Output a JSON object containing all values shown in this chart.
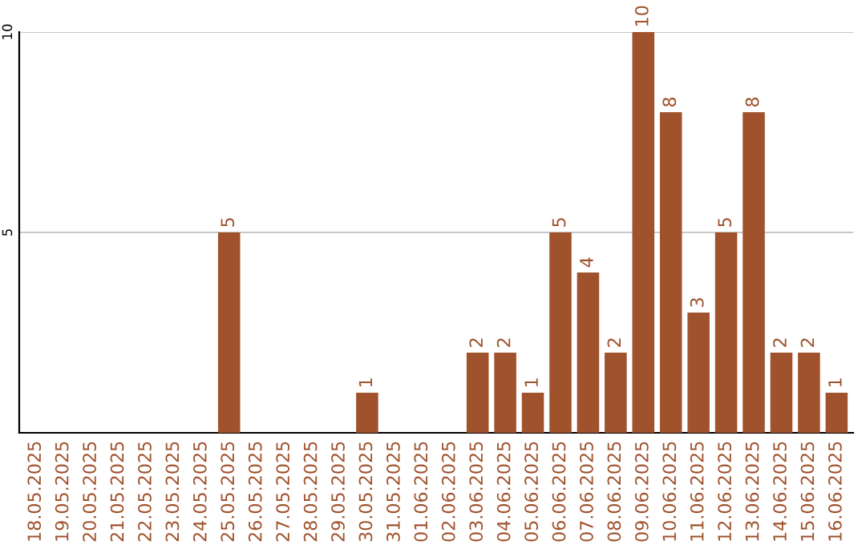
{
  "chart_data": {
    "type": "bar",
    "categories": [
      "18.05.2025",
      "19.05.2025",
      "20.05.2025",
      "21.05.2025",
      "22.05.2025",
      "23.05.2025",
      "24.05.2025",
      "25.05.2025",
      "26.05.2025",
      "27.05.2025",
      "28.05.2025",
      "29.05.2025",
      "30.05.2025",
      "31.05.2025",
      "01.06.2025",
      "02.06.2025",
      "03.06.2025",
      "04.06.2025",
      "05.06.2025",
      "06.06.2025",
      "07.06.2025",
      "08.06.2025",
      "09.06.2025",
      "10.06.2025",
      "11.06.2025",
      "12.06.2025",
      "13.06.2025",
      "14.06.2025",
      "15.06.2025",
      "16.06.2025"
    ],
    "values": [
      0,
      0,
      0,
      0,
      0,
      0,
      0,
      5,
      0,
      0,
      0,
      0,
      1,
      0,
      0,
      0,
      2,
      2,
      1,
      5,
      4,
      2,
      10,
      8,
      3,
      5,
      8,
      2,
      2,
      1
    ],
    "value_labels": [
      null,
      null,
      null,
      null,
      null,
      null,
      null,
      "5",
      null,
      null,
      null,
      null,
      "1",
      null,
      null,
      null,
      "2",
      "2",
      "1",
      "5",
      "4",
      "2",
      "10",
      "8",
      "3",
      "5",
      "8",
      "2",
      "2",
      "1"
    ],
    "color": "#a0522d",
    "ylim": [
      0,
      10
    ],
    "yticks": [
      5,
      10
    ],
    "grid": "y"
  }
}
